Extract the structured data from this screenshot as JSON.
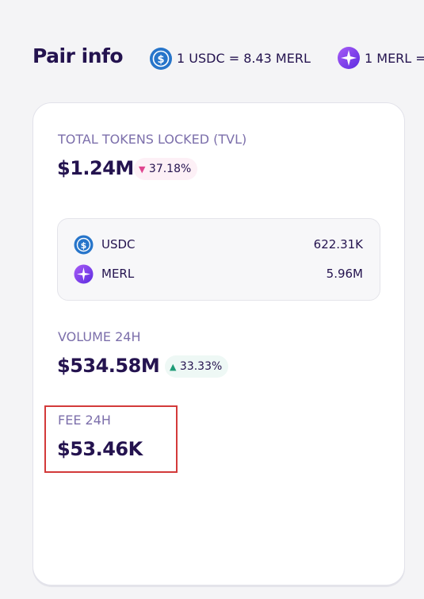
{
  "header": {
    "title": "Pair info",
    "rates": [
      "1 USDC = 8.43 MERL",
      "1 MERL ="
    ]
  },
  "tvl": {
    "label": "TOTAL TOKENS LOCKED (TVL)",
    "value": "$1.24M",
    "change": "37.18%"
  },
  "tokens": [
    {
      "symbol": "USDC",
      "amount": "622.31K"
    },
    {
      "symbol": "MERL",
      "amount": "5.96M"
    }
  ],
  "volume": {
    "label": "VOLUME 24H",
    "value": "$534.58M",
    "change": "33.33%"
  },
  "fee": {
    "label": "FEE 24H",
    "value": "$53.46K"
  }
}
